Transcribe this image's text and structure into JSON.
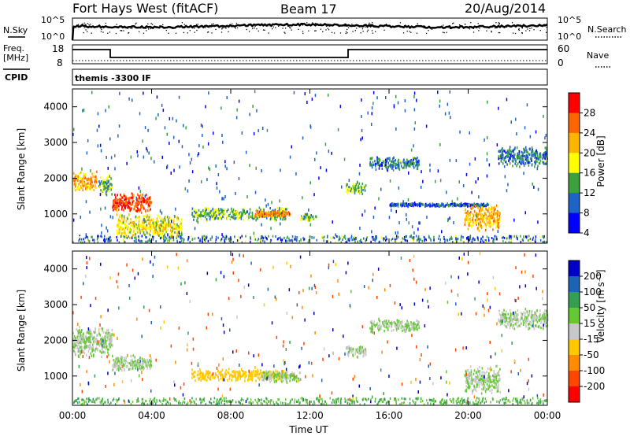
{
  "header": {
    "station": "Fort Hays West (fitACF)",
    "beam": "Beam 17",
    "date": "20/Aug/2014"
  },
  "top_panels": {
    "nsky_label": "N.Sky",
    "nsky_ticks": [
      "10^5",
      "10^0"
    ],
    "nsearch_label": "N.Search",
    "nsearch_ticks": [
      "10^5",
      "10^0"
    ],
    "freq_label_1": "Freq.",
    "freq_label_2": "[MHz]",
    "freq_ticks": [
      "18",
      "8"
    ],
    "nave_label": "Nave",
    "nave_ticks": [
      "60",
      "0"
    ],
    "cpid_label": "CPID",
    "cpid_text": "themis -3300 IF"
  },
  "power_panel": {
    "ylabel": "Slant Range [km]",
    "yticks": [
      "4000",
      "3000",
      "2000",
      "1000"
    ],
    "cbar_label": "Power [dB]",
    "cbar_ticks": [
      "28",
      "24",
      "20",
      "16",
      "12",
      "8",
      "4"
    ],
    "cbar_colors": [
      "#ff0000",
      "#ff6400",
      "#ffb400",
      "#ffff00",
      "#3ca03c",
      "#1e64c8",
      "#0000ff"
    ]
  },
  "velocity_panel": {
    "ylabel": "Slant Range [km]",
    "yticks": [
      "4000",
      "3000",
      "2000",
      "1000"
    ],
    "cbar_label": "Velocity [m s⁻¹]",
    "cbar_ticks": [
      "200",
      "100",
      "50",
      "15",
      "-15",
      "-50",
      "-100",
      "-200"
    ],
    "cbar_colors": [
      "#0000c8",
      "#1e64b4",
      "#32a050",
      "#64c832",
      "#c8c8c8",
      "#ffc800",
      "#ff8c00",
      "#ff4600",
      "#ff0000"
    ]
  },
  "xaxis": {
    "label": "Time UT",
    "ticks": [
      "00:00",
      "04:00",
      "08:00",
      "12:00",
      "16:00",
      "20:00",
      "00:00"
    ]
  },
  "chart_data": [
    {
      "type": "heatmap",
      "title": "Fort Hays West (fitACF)",
      "subtitle": "Beam 17",
      "xlabel": "Time UT",
      "ylabel": "Slant Range [km]",
      "xlim": [
        "00:00",
        "24:00"
      ],
      "ylim": [
        180,
        4500
      ],
      "colorbar": {
        "label": "Power [dB]",
        "range": [
          0,
          30
        ]
      },
      "series": [
        {
          "x_hours": [
            0.0,
            1.2
          ],
          "range_km": [
            1600,
            2200
          ],
          "value": 20
        },
        {
          "x_hours": [
            1.3,
            2.0
          ],
          "range_km": [
            1500,
            2100
          ],
          "value": 12
        },
        {
          "x_hours": [
            2.0,
            4.0
          ],
          "range_km": [
            1000,
            1600
          ],
          "value": 26
        },
        {
          "x_hours": [
            2.2,
            5.5
          ],
          "range_km": [
            300,
            1000
          ],
          "value": 16
        },
        {
          "x_hours": [
            6.0,
            10.8
          ],
          "range_km": [
            800,
            1200
          ],
          "value": 12
        },
        {
          "x_hours": [
            9.2,
            11.0
          ],
          "range_km": [
            900,
            1100
          ],
          "value": 22
        },
        {
          "x_hours": [
            11.5,
            12.3
          ],
          "range_km": [
            800,
            1000
          ],
          "value": 12
        },
        {
          "x_hours": [
            13.8,
            14.8
          ],
          "range_km": [
            1500,
            1900
          ],
          "value": 12
        },
        {
          "x_hours": [
            15.0,
            17.5
          ],
          "range_km": [
            2200,
            2600
          ],
          "value": 8
        },
        {
          "x_hours": [
            16.0,
            21.0
          ],
          "range_km": [
            1200,
            1300
          ],
          "value": 6
        },
        {
          "x_hours": [
            19.8,
            21.6
          ],
          "range_km": [
            500,
            1300
          ],
          "value": 20
        },
        {
          "x_hours": [
            21.5,
            24.0
          ],
          "range_km": [
            2300,
            2900
          ],
          "value": 8
        }
      ]
    },
    {
      "type": "heatmap",
      "xlabel": "Time UT",
      "ylabel": "Slant Range [km]",
      "xlim": [
        "00:00",
        "24:00"
      ],
      "ylim": [
        180,
        4500
      ],
      "colorbar": {
        "label": "Velocity [m s⁻¹]",
        "range": [
          -200,
          200
        ]
      },
      "series": [
        {
          "x_hours": [
            0.0,
            2.0
          ],
          "range_km": [
            1500,
            2400
          ],
          "value": 0
        },
        {
          "x_hours": [
            2.0,
            4.0
          ],
          "range_km": [
            1100,
            1600
          ],
          "value": 0
        },
        {
          "x_hours": [
            6.0,
            10.8
          ],
          "range_km": [
            850,
            1200
          ],
          "value": -30
        },
        {
          "x_hours": [
            9.5,
            11.5
          ],
          "range_km": [
            800,
            1150
          ],
          "value": 0
        },
        {
          "x_hours": [
            13.8,
            14.8
          ],
          "range_km": [
            1500,
            1900
          ],
          "value": 0
        },
        {
          "x_hours": [
            15.0,
            17.5
          ],
          "range_km": [
            2200,
            2600
          ],
          "value": 0
        },
        {
          "x_hours": [
            19.8,
            21.6
          ],
          "range_km": [
            500,
            1300
          ],
          "value": 0
        },
        {
          "x_hours": [
            21.5,
            24.0
          ],
          "range_km": [
            2300,
            2900
          ],
          "value": 0
        }
      ]
    }
  ]
}
